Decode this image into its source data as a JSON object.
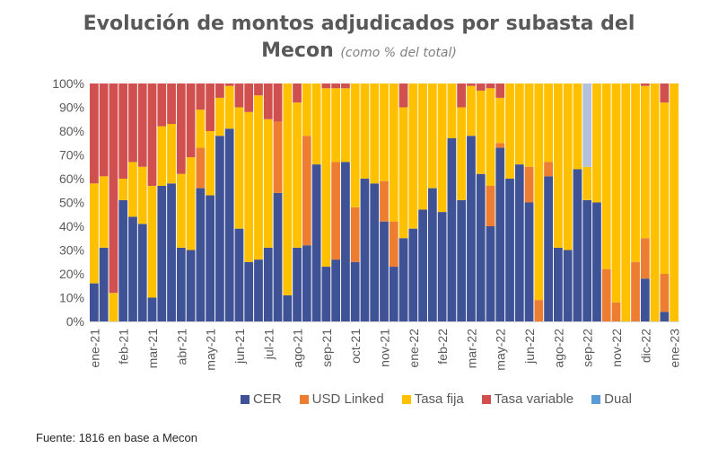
{
  "chart_data": {
    "type": "bar",
    "stacked": true,
    "title": "Evolución de montos adjudicados por subasta del Mecon",
    "subtitle": "(como % del total)",
    "xlabel": "",
    "ylabel": "",
    "ylim": [
      0,
      100
    ],
    "yticks": [
      "0%",
      "10%",
      "20%",
      "30%",
      "40%",
      "50%",
      "60%",
      "70%",
      "80%",
      "90%",
      "100%"
    ],
    "xtick_labels": [
      {
        "index": 0,
        "label": "ene-21"
      },
      {
        "index": 3,
        "label": "feb-21"
      },
      {
        "index": 6,
        "label": "mar-21"
      },
      {
        "index": 9,
        "label": "abr-21"
      },
      {
        "index": 12,
        "label": "may-21"
      },
      {
        "index": 15,
        "label": "jun-21"
      },
      {
        "index": 18,
        "label": "jul-21"
      },
      {
        "index": 21,
        "label": "ago-21"
      },
      {
        "index": 24,
        "label": "sep-21"
      },
      {
        "index": 27,
        "label": "oct-21"
      },
      {
        "index": 30,
        "label": "nov-21"
      },
      {
        "index": 33,
        "label": "ene-22"
      },
      {
        "index": 36,
        "label": "feb-22"
      },
      {
        "index": 39,
        "label": "mar-22"
      },
      {
        "index": 42,
        "label": "may-22"
      },
      {
        "index": 45,
        "label": "jun-22"
      },
      {
        "index": 48,
        "label": "ago-22"
      },
      {
        "index": 51,
        "label": "sep-22"
      },
      {
        "index": 54,
        "label": "nov-22"
      },
      {
        "index": 57,
        "label": "dic-22"
      },
      {
        "index": 60,
        "label": "ene-23"
      }
    ],
    "series": [
      {
        "name": "CER",
        "color": "#3F5296",
        "values": [
          16,
          31,
          0,
          51,
          44,
          41,
          10,
          57,
          58,
          31,
          30,
          56,
          53,
          78,
          81,
          39,
          25,
          26,
          31,
          54,
          11,
          31,
          32,
          66,
          23,
          26,
          67,
          25,
          60,
          58,
          42,
          23,
          35,
          39,
          47,
          56,
          46,
          77,
          51,
          78,
          62,
          40,
          73,
          60,
          66,
          50,
          0,
          61,
          31,
          30,
          64,
          51,
          50,
          0,
          0,
          0,
          0,
          18,
          0,
          4,
          0
        ]
      },
      {
        "name": "USD Linked",
        "color": "#ED7D31",
        "values": [
          0,
          0,
          0,
          0,
          0,
          0,
          0,
          0,
          0,
          0,
          0,
          17,
          0,
          0,
          0,
          0,
          0,
          0,
          0,
          30,
          0,
          0,
          46,
          0,
          0,
          41,
          0,
          23,
          0,
          0,
          17,
          19,
          0,
          0,
          0,
          0,
          0,
          0,
          0,
          0,
          0,
          17,
          2,
          0,
          0,
          15,
          9,
          6,
          0,
          0,
          0,
          0,
          0,
          22,
          8,
          0,
          25,
          17,
          0,
          16,
          0
        ]
      },
      {
        "name": "Tasa fija",
        "color": "#FFC000",
        "values": [
          42,
          30,
          12,
          9,
          23,
          24,
          47,
          25,
          25,
          31,
          39,
          16,
          27,
          16,
          18,
          51,
          63,
          69,
          54,
          0,
          89,
          61,
          22,
          34,
          75,
          31,
          31,
          52,
          40,
          42,
          41,
          58,
          55,
          61,
          53,
          44,
          54,
          23,
          39,
          21,
          35,
          41,
          19,
          40,
          34,
          35,
          91,
          33,
          69,
          70,
          36,
          14,
          50,
          78,
          92,
          100,
          75,
          64,
          100,
          72,
          100
        ]
      },
      {
        "name": "Tasa variable",
        "color": "#D0504F",
        "values": [
          42,
          39,
          88,
          40,
          33,
          35,
          43,
          18,
          17,
          38,
          31,
          11,
          20,
          6,
          1,
          10,
          12,
          5,
          15,
          16,
          0,
          8,
          0,
          0,
          2,
          2,
          2,
          0,
          0,
          0,
          0,
          0,
          10,
          0,
          0,
          0,
          0,
          0,
          10,
          1,
          3,
          2,
          6,
          0,
          0,
          0,
          0,
          0,
          0,
          0,
          0,
          0,
          0,
          0,
          0,
          0,
          0,
          1,
          0,
          8,
          0
        ]
      },
      {
        "name": "Dual",
        "color": "#5B9BD5",
        "values": [
          0,
          0,
          0,
          0,
          0,
          0,
          0,
          0,
          0,
          0,
          0,
          0,
          0,
          0,
          0,
          0,
          0,
          0,
          0,
          0,
          0,
          0,
          0,
          0,
          0,
          0,
          0,
          0,
          0,
          0,
          0,
          0,
          0,
          0,
          0,
          0,
          0,
          0,
          0,
          0,
          0,
          0,
          0,
          0,
          0,
          0,
          0,
          0,
          0,
          0,
          0,
          35,
          0,
          0,
          0,
          0,
          0,
          0,
          0,
          0,
          0
        ]
      }
    ],
    "grid": false,
    "legend": "bottom"
  },
  "header": {
    "title_line1": "Evolución de montos adjudicados por subasta del",
    "title_line2": "Mecon",
    "subtitle": "(como % del total)"
  },
  "legend": {
    "items": [
      {
        "label": "CER",
        "color": "#3F5296"
      },
      {
        "label": "USD Linked",
        "color": "#ED7D31"
      },
      {
        "label": "Tasa fija",
        "color": "#FFC000"
      },
      {
        "label": "Tasa variable",
        "color": "#D0504F"
      },
      {
        "label": "Dual",
        "color": "#5B9BD5"
      }
    ]
  },
  "footer": {
    "source": "Fuente: 1816 en base a Mecon"
  }
}
